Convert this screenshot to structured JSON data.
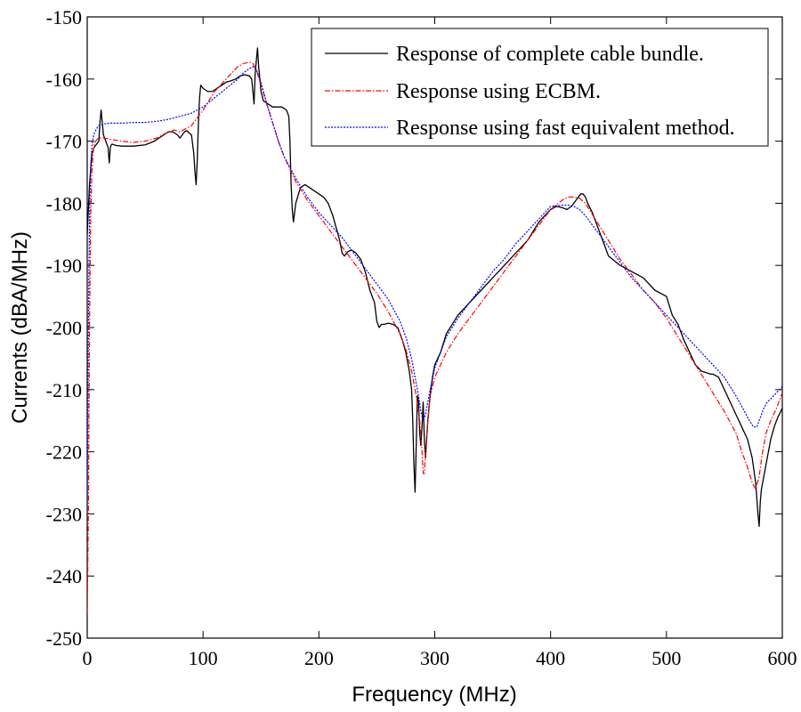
{
  "chart_data": {
    "type": "line",
    "title": "",
    "xlabel": "Frequency (MHz)",
    "ylabel": "Currents (dBA/MHz)",
    "xlim": [
      0,
      600
    ],
    "ylim": [
      -250,
      -150
    ],
    "x_ticks": [
      0,
      100,
      200,
      300,
      400,
      500,
      600
    ],
    "y_ticks": [
      -150,
      -160,
      -170,
      -180,
      -190,
      -200,
      -210,
      -220,
      -230,
      -240,
      -250
    ],
    "grid": false,
    "legend_position": "top-right",
    "series": [
      {
        "name": "Response of complete cable bundle.",
        "color": "#000000",
        "style": "solid",
        "x": [
          0,
          2,
          4,
          6,
          8,
          10,
          11,
          12,
          13,
          14,
          16,
          18,
          19,
          20,
          21,
          22,
          25,
          30,
          40,
          50,
          58,
          62,
          66,
          70,
          74,
          78,
          80,
          82,
          84,
          86,
          88,
          90,
          92,
          93,
          94,
          95,
          96,
          97,
          98,
          100,
          104,
          108,
          112,
          116,
          120,
          124,
          128,
          132,
          136,
          140,
          142,
          143,
          144,
          145,
          146,
          147,
          148,
          150,
          152,
          156,
          160,
          164,
          168,
          172,
          174,
          175,
          176,
          177,
          178,
          180,
          184,
          188,
          192,
          196,
          200,
          204,
          208,
          212,
          215,
          218,
          220,
          222,
          225,
          228,
          232,
          236,
          240,
          244,
          248,
          250,
          252,
          254,
          256,
          260,
          264,
          268,
          270,
          272,
          275,
          278,
          280,
          281,
          282,
          283,
          284,
          285,
          286,
          287,
          288,
          289,
          290,
          291,
          292,
          293,
          294,
          295,
          296,
          298,
          300,
          305,
          310,
          320,
          330,
          340,
          350,
          360,
          370,
          380,
          390,
          400,
          405,
          410,
          414,
          418,
          422,
          426,
          428,
          430,
          432,
          436,
          440,
          445,
          450,
          460,
          470,
          480,
          490,
          500,
          505,
          510,
          515,
          520,
          525,
          530,
          535,
          538,
          540,
          545,
          550,
          555,
          560,
          565,
          570,
          574,
          577,
          579,
          580,
          581,
          582,
          583,
          584,
          586,
          588,
          590,
          593,
          596,
          600
        ],
        "y": [
          -185,
          -177,
          -172,
          -171,
          -170.5,
          -170,
          -167,
          -165,
          -167,
          -169,
          -170,
          -171,
          -173.5,
          -171,
          -170.5,
          -170.5,
          -170.7,
          -170.8,
          -170.8,
          -170.6,
          -170,
          -169.5,
          -169,
          -168.5,
          -168.5,
          -169,
          -169.5,
          -169,
          -168.5,
          -168.3,
          -168.7,
          -169,
          -172,
          -175,
          -177,
          -173,
          -167,
          -163,
          -161,
          -161.5,
          -162,
          -162,
          -161.5,
          -161,
          -160.5,
          -160.3,
          -160,
          -159.5,
          -159.3,
          -159.5,
          -160,
          -162,
          -164,
          -159,
          -157,
          -155,
          -158,
          -162,
          -163.5,
          -164,
          -164.5,
          -164.5,
          -164.5,
          -165,
          -166,
          -170,
          -177,
          -181,
          -183,
          -180,
          -177.5,
          -177,
          -177.5,
          -178,
          -178.5,
          -179,
          -180,
          -182,
          -184,
          -186,
          -188,
          -188.5,
          -187.8,
          -187.5,
          -188,
          -189,
          -191,
          -194,
          -196,
          -199,
          -200,
          -199.5,
          -199.5,
          -199.3,
          -199.5,
          -200,
          -201,
          -202,
          -204,
          -207,
          -210,
          -215,
          -222,
          -226.5,
          -219,
          -211,
          -212,
          -217,
          -219,
          -216,
          -212,
          -218,
          -221,
          -218,
          -215,
          -213,
          -211,
          -208,
          -206,
          -204,
          -201,
          -198,
          -196,
          -194,
          -192,
          -190,
          -188,
          -186,
          -183,
          -181,
          -180.5,
          -180.7,
          -181,
          -180.5,
          -179.5,
          -178.5,
          -178.5,
          -179,
          -180,
          -181.5,
          -183.5,
          -186,
          -188.5,
          -190,
          -191,
          -192,
          -194,
          -195,
          -198,
          -199.5,
          -202,
          -204,
          -206,
          -207,
          -207.3,
          -207.5,
          -207.5,
          -208,
          -210,
          -212,
          -214,
          -216,
          -218,
          -221,
          -225,
          -230,
          -232,
          -228,
          -226,
          -225,
          -224,
          -222,
          -220,
          -218,
          -216,
          -214.5,
          -213
        ]
      },
      {
        "name": "Response using ECBM.",
        "color": "#ff0000",
        "style": "dashdot",
        "x": [
          0,
          1,
          2,
          3,
          4,
          5,
          6,
          8,
          10,
          15,
          20,
          30,
          40,
          50,
          60,
          70,
          75,
          80,
          90,
          100,
          110,
          120,
          130,
          135,
          140,
          143,
          146,
          150,
          155,
          160,
          165,
          170,
          180,
          190,
          200,
          210,
          220,
          230,
          240,
          250,
          260,
          270,
          275,
          280,
          284,
          287,
          289,
          290,
          291,
          292,
          294,
          296,
          300,
          305,
          310,
          320,
          330,
          340,
          350,
          360,
          370,
          380,
          390,
          400,
          410,
          415,
          420,
          425,
          430,
          435,
          440,
          450,
          460,
          470,
          480,
          490,
          500,
          510,
          520,
          530,
          540,
          550,
          560,
          565,
          570,
          574,
          577,
          580,
          583,
          586,
          590,
          595,
          600
        ],
        "y": [
          -246,
          -230,
          -200,
          -182,
          -175,
          -172,
          -170.5,
          -169.8,
          -169.5,
          -169.5,
          -169.7,
          -170,
          -170.2,
          -170,
          -169.5,
          -168.5,
          -168.2,
          -168.5,
          -167.5,
          -165,
          -162,
          -160,
          -158,
          -157.5,
          -157.3,
          -157.5,
          -158.5,
          -161,
          -164,
          -167,
          -170,
          -172.5,
          -176.5,
          -179.5,
          -182,
          -184.5,
          -187,
          -189.5,
          -192,
          -194.5,
          -197.5,
          -201,
          -203.5,
          -207,
          -211,
          -215,
          -220,
          -223.5,
          -223.5,
          -220,
          -215,
          -211,
          -208,
          -206,
          -204,
          -201,
          -198.5,
          -196,
          -193.5,
          -191,
          -188.5,
          -186,
          -183.5,
          -181,
          -179.5,
          -179,
          -179,
          -179.2,
          -180,
          -181.5,
          -183,
          -186,
          -189,
          -191.5,
          -194,
          -196,
          -198.5,
          -201.5,
          -204.5,
          -207.5,
          -210.5,
          -213.5,
          -217,
          -220,
          -222.5,
          -225,
          -226,
          -224,
          -220,
          -217,
          -215,
          -213,
          -210.5
        ]
      },
      {
        "name": "Response using fast equivalent method.",
        "color": "#0000ff",
        "style": "dotted",
        "x": [
          0,
          1,
          2,
          3,
          4,
          5,
          6,
          8,
          10,
          15,
          20,
          30,
          40,
          50,
          60,
          70,
          80,
          90,
          100,
          110,
          120,
          130,
          135,
          140,
          143,
          146,
          150,
          155,
          160,
          165,
          170,
          180,
          190,
          200,
          210,
          220,
          230,
          240,
          250,
          260,
          270,
          275,
          280,
          283,
          286,
          288,
          290,
          292,
          294,
          296,
          300,
          305,
          310,
          320,
          330,
          340,
          350,
          360,
          370,
          380,
          390,
          400,
          410,
          415,
          420,
          425,
          430,
          440,
          450,
          460,
          470,
          480,
          490,
          500,
          510,
          520,
          530,
          540,
          550,
          560,
          566,
          570,
          575,
          578,
          581,
          584,
          587,
          590,
          595,
          600
        ],
        "y": [
          -230,
          -200,
          -182,
          -174,
          -171,
          -169.5,
          -168.8,
          -168,
          -167.5,
          -167.2,
          -167.1,
          -167.1,
          -167,
          -167,
          -166.8,
          -166.5,
          -166,
          -165.5,
          -164.5,
          -163,
          -161.5,
          -160,
          -159,
          -158.3,
          -158,
          -158.5,
          -160.5,
          -164,
          -167,
          -170,
          -172.5,
          -176,
          -179,
          -181.5,
          -183.5,
          -185.5,
          -188,
          -190.5,
          -193,
          -195.5,
          -199,
          -201.5,
          -205,
          -208,
          -211,
          -213.5,
          -215,
          -214,
          -212,
          -210,
          -206.5,
          -204,
          -201.5,
          -198.5,
          -196,
          -193.5,
          -191,
          -189,
          -186.5,
          -184.5,
          -182.5,
          -180.5,
          -180.3,
          -180.3,
          -180.5,
          -181,
          -182,
          -184.5,
          -187,
          -189.5,
          -192,
          -194,
          -196,
          -198,
          -200,
          -202,
          -204,
          -206,
          -208,
          -211,
          -213,
          -214.5,
          -216,
          -216,
          -214.5,
          -213,
          -212,
          -211.5,
          -210.5,
          -209.5
        ]
      }
    ]
  }
}
